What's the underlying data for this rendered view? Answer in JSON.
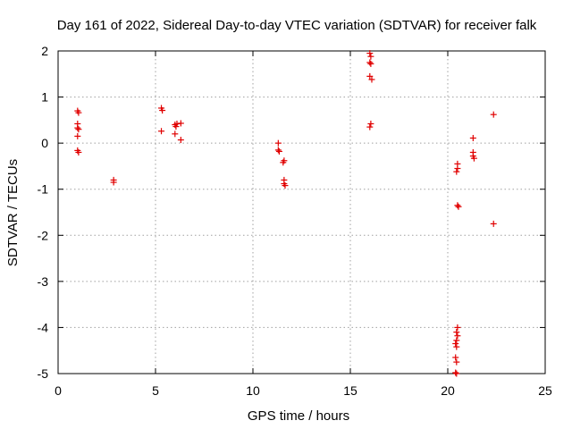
{
  "chart_data": {
    "type": "scatter",
    "title": "Day 161 of 2022, Sidereal Day-to-day VTEC variation (SDTVAR) for receiver falk",
    "xlabel": "GPS time / hours",
    "ylabel": "SDTVAR / TECUs",
    "xlim": [
      0,
      25
    ],
    "ylim": [
      -5,
      2
    ],
    "xticks": [
      "0",
      "5",
      "10",
      "15",
      "20",
      "25"
    ],
    "yticks": [
      "-5",
      "-4",
      "-3",
      "-2",
      "-1",
      "0",
      "1",
      "2"
    ],
    "grid": true,
    "marker": "+",
    "color": "#e00000",
    "series": [
      {
        "name": "SDTVAR",
        "points": [
          [
            1.0,
            0.7
          ],
          [
            1.05,
            0.66
          ],
          [
            1.0,
            0.42
          ],
          [
            1.0,
            0.33
          ],
          [
            1.05,
            0.3
          ],
          [
            1.0,
            0.15
          ],
          [
            1.0,
            -0.16
          ],
          [
            1.05,
            -0.2
          ],
          [
            2.85,
            -0.8
          ],
          [
            2.85,
            -0.85
          ],
          [
            5.3,
            0.76
          ],
          [
            5.35,
            0.71
          ],
          [
            5.3,
            0.26
          ],
          [
            6.0,
            0.4
          ],
          [
            6.1,
            0.42
          ],
          [
            6.3,
            0.43
          ],
          [
            6.05,
            0.36
          ],
          [
            6.0,
            0.2
          ],
          [
            6.3,
            0.07
          ],
          [
            11.3,
            0.0
          ],
          [
            11.3,
            -0.15
          ],
          [
            11.35,
            -0.18
          ],
          [
            11.6,
            -0.38
          ],
          [
            11.55,
            -0.42
          ],
          [
            11.6,
            -0.8
          ],
          [
            11.6,
            -0.88
          ],
          [
            11.65,
            -0.92
          ],
          [
            16.0,
            1.95
          ],
          [
            16.05,
            1.88
          ],
          [
            16.0,
            1.75
          ],
          [
            16.05,
            1.72
          ],
          [
            16.0,
            1.45
          ],
          [
            16.1,
            1.38
          ],
          [
            16.05,
            0.42
          ],
          [
            16.0,
            0.35
          ],
          [
            20.5,
            -0.45
          ],
          [
            20.5,
            -0.55
          ],
          [
            20.45,
            -0.62
          ],
          [
            20.5,
            -1.35
          ],
          [
            20.55,
            -1.38
          ],
          [
            20.5,
            -4.0
          ],
          [
            20.45,
            -4.1
          ],
          [
            20.5,
            -4.18
          ],
          [
            20.45,
            -4.28
          ],
          [
            20.4,
            -4.35
          ],
          [
            20.45,
            -4.42
          ],
          [
            20.4,
            -4.65
          ],
          [
            20.45,
            -4.75
          ],
          [
            20.4,
            -4.98
          ],
          [
            20.45,
            -5.0
          ],
          [
            21.3,
            0.11
          ],
          [
            21.3,
            -0.2
          ],
          [
            21.3,
            -0.28
          ],
          [
            21.35,
            -0.33
          ],
          [
            22.35,
            0.62
          ],
          [
            22.35,
            -1.75
          ]
        ]
      }
    ]
  }
}
